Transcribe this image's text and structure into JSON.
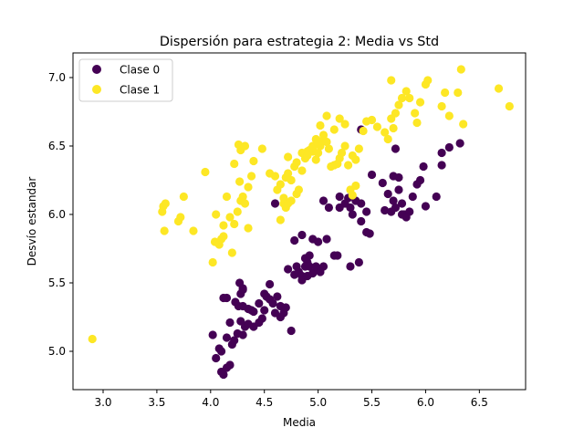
{
  "chart_data": {
    "type": "scatter",
    "title": "Dispersión para estrategia 2: Media vs Std",
    "xlabel": "Media",
    "ylabel": "Desvío estandar",
    "xlim": [
      2.72,
      6.93
    ],
    "ylim": [
      4.72,
      7.18
    ],
    "xticks": [
      3.0,
      3.5,
      4.0,
      4.5,
      5.0,
      5.5,
      6.0,
      6.5
    ],
    "yticks": [
      5.0,
      5.5,
      6.0,
      6.5,
      7.0
    ],
    "xtick_labels": [
      "3.0",
      "3.5",
      "4.0",
      "4.5",
      "5.0",
      "5.5",
      "6.0",
      "6.5"
    ],
    "ytick_labels": [
      "5.0",
      "5.5",
      "6.0",
      "6.5",
      "7.0"
    ],
    "grid": false,
    "legend_position": "top-left",
    "series": [
      {
        "name": "Clase 0",
        "color": "#440154",
        "points": [
          [
            4.1,
            4.85
          ],
          [
            4.12,
            4.83
          ],
          [
            4.15,
            4.88
          ],
          [
            4.18,
            4.9
          ],
          [
            4.05,
            4.95
          ],
          [
            4.08,
            5.02
          ],
          [
            4.02,
            5.12
          ],
          [
            4.1,
            5.0
          ],
          [
            4.15,
            5.1
          ],
          [
            4.2,
            5.05
          ],
          [
            4.22,
            5.08
          ],
          [
            4.25,
            5.13
          ],
          [
            4.18,
            5.21
          ],
          [
            4.28,
            5.22
          ],
          [
            4.3,
            5.12
          ],
          [
            4.32,
            5.18
          ],
          [
            4.35,
            5.2
          ],
          [
            4.4,
            5.18
          ],
          [
            4.45,
            5.21
          ],
          [
            4.48,
            5.24
          ],
          [
            4.5,
            5.3
          ],
          [
            4.4,
            5.29
          ],
          [
            4.35,
            5.31
          ],
          [
            4.3,
            5.33
          ],
          [
            4.26,
            5.33
          ],
          [
            4.23,
            5.36
          ],
          [
            4.15,
            5.39
          ],
          [
            4.12,
            5.39
          ],
          [
            4.28,
            5.42
          ],
          [
            4.3,
            5.45
          ],
          [
            4.27,
            5.5
          ],
          [
            4.3,
            5.46
          ],
          [
            4.38,
            5.3
          ],
          [
            4.45,
            5.35
          ],
          [
            4.5,
            5.42
          ],
          [
            4.52,
            5.4
          ],
          [
            4.55,
            5.38
          ],
          [
            4.58,
            5.35
          ],
          [
            4.62,
            5.4
          ],
          [
            4.55,
            5.49
          ],
          [
            4.65,
            5.33
          ],
          [
            4.68,
            5.28
          ],
          [
            4.65,
            5.25
          ],
          [
            4.6,
            5.28
          ],
          [
            4.7,
            5.32
          ],
          [
            4.75,
            5.15
          ],
          [
            4.72,
            5.6
          ],
          [
            4.78,
            5.56
          ],
          [
            4.82,
            5.58
          ],
          [
            4.85,
            5.55
          ],
          [
            4.88,
            5.62
          ],
          [
            4.9,
            5.65
          ],
          [
            4.92,
            5.62
          ],
          [
            4.8,
            5.62
          ],
          [
            4.85,
            5.52
          ],
          [
            4.9,
            5.55
          ],
          [
            4.95,
            5.57
          ],
          [
            5.0,
            5.6
          ],
          [
            5.05,
            5.62
          ],
          [
            4.88,
            5.68
          ],
          [
            4.92,
            5.7
          ],
          [
            4.98,
            5.62
          ],
          [
            5.02,
            5.58
          ],
          [
            4.78,
            5.81
          ],
          [
            4.85,
            5.85
          ],
          [
            4.95,
            5.82
          ],
          [
            5.0,
            5.8
          ],
          [
            5.08,
            5.82
          ],
          [
            5.15,
            5.7
          ],
          [
            5.18,
            5.7
          ],
          [
            5.3,
            5.62
          ],
          [
            5.38,
            5.65
          ],
          [
            5.45,
            5.87
          ],
          [
            5.48,
            5.86
          ],
          [
            5.4,
            5.95
          ],
          [
            5.32,
            6.0
          ],
          [
            5.3,
            6.05
          ],
          [
            5.25,
            6.08
          ],
          [
            5.2,
            6.05
          ],
          [
            5.28,
            6.12
          ],
          [
            5.35,
            6.1
          ],
          [
            5.4,
            6.08
          ],
          [
            5.05,
            6.1
          ],
          [
            5.1,
            6.05
          ],
          [
            5.2,
            6.13
          ],
          [
            5.45,
            6.02
          ],
          [
            5.5,
            6.29
          ],
          [
            5.6,
            6.23
          ],
          [
            5.65,
            6.15
          ],
          [
            5.7,
            6.1
          ],
          [
            5.75,
            6.18
          ],
          [
            5.62,
            6.03
          ],
          [
            5.68,
            6.02
          ],
          [
            5.72,
            6.05
          ],
          [
            5.78,
            6.08
          ],
          [
            5.8,
            6.0
          ],
          [
            5.85,
            6.02
          ],
          [
            5.88,
            6.13
          ],
          [
            5.92,
            6.22
          ],
          [
            5.95,
            6.25
          ],
          [
            6.0,
            6.06
          ],
          [
            5.75,
            6.27
          ],
          [
            5.7,
            6.28
          ],
          [
            5.98,
            6.35
          ],
          [
            5.78,
            6.0
          ],
          [
            5.82,
            5.98
          ],
          [
            6.1,
            6.13
          ],
          [
            6.15,
            6.36
          ],
          [
            6.15,
            6.45
          ],
          [
            6.22,
            6.49
          ],
          [
            6.32,
            6.52
          ],
          [
            5.72,
            6.48
          ],
          [
            5.4,
            6.62
          ],
          [
            4.6,
            6.08
          ]
        ]
      },
      {
        "name": "Clase 1",
        "color": "#fde725",
        "points": [
          [
            2.9,
            5.09
          ],
          [
            3.55,
            6.02
          ],
          [
            3.56,
            6.06
          ],
          [
            3.58,
            6.08
          ],
          [
            3.57,
            5.88
          ],
          [
            3.7,
            5.95
          ],
          [
            3.72,
            5.98
          ],
          [
            3.75,
            6.13
          ],
          [
            3.84,
            5.88
          ],
          [
            3.95,
            6.31
          ],
          [
            4.02,
            5.65
          ],
          [
            4.04,
            5.8
          ],
          [
            4.05,
            6.0
          ],
          [
            4.08,
            5.78
          ],
          [
            4.1,
            5.82
          ],
          [
            4.12,
            5.92
          ],
          [
            4.15,
            6.13
          ],
          [
            4.12,
            5.84
          ],
          [
            4.18,
            5.98
          ],
          [
            4.2,
            5.72
          ],
          [
            4.22,
            5.93
          ],
          [
            4.25,
            6.02
          ],
          [
            4.28,
            6.1
          ],
          [
            4.3,
            6.13
          ],
          [
            4.32,
            6.08
          ],
          [
            4.35,
            5.9
          ],
          [
            4.38,
            6.28
          ],
          [
            4.27,
            6.24
          ],
          [
            4.26,
            6.51
          ],
          [
            4.28,
            6.47
          ],
          [
            4.22,
            6.37
          ],
          [
            4.32,
            6.5
          ],
          [
            4.35,
            6.2
          ],
          [
            4.4,
            6.39
          ],
          [
            4.48,
            6.48
          ],
          [
            4.55,
            6.3
          ],
          [
            4.6,
            6.28
          ],
          [
            4.62,
            6.18
          ],
          [
            4.65,
            6.22
          ],
          [
            4.7,
            6.27
          ],
          [
            4.72,
            6.3
          ],
          [
            4.78,
            6.35
          ],
          [
            4.8,
            6.38
          ],
          [
            4.72,
            6.42
          ],
          [
            4.75,
            6.25
          ],
          [
            4.8,
            6.15
          ],
          [
            4.68,
            6.08
          ],
          [
            4.75,
            6.1
          ],
          [
            4.82,
            6.18
          ],
          [
            4.85,
            6.32
          ],
          [
            4.88,
            6.41
          ],
          [
            4.9,
            6.46
          ],
          [
            4.92,
            6.47
          ],
          [
            4.95,
            6.5
          ],
          [
            4.98,
            6.4
          ],
          [
            5.0,
            6.45
          ],
          [
            5.02,
            6.5
          ],
          [
            5.05,
            6.55
          ],
          [
            5.08,
            6.53
          ],
          [
            5.1,
            6.48
          ],
          [
            5.12,
            6.35
          ],
          [
            5.15,
            6.36
          ],
          [
            5.18,
            6.37
          ],
          [
            5.2,
            6.41
          ],
          [
            5.22,
            6.45
          ],
          [
            5.25,
            6.5
          ],
          [
            5.28,
            6.36
          ],
          [
            5.32,
            6.43
          ],
          [
            5.35,
            6.4
          ],
          [
            5.38,
            6.48
          ],
          [
            5.42,
            6.61
          ],
          [
            5.45,
            6.68
          ],
          [
            5.5,
            6.69
          ],
          [
            5.25,
            6.66
          ],
          [
            5.2,
            6.7
          ],
          [
            5.15,
            6.62
          ],
          [
            5.02,
            6.65
          ],
          [
            5.05,
            6.58
          ],
          [
            5.08,
            6.72
          ],
          [
            4.98,
            6.55
          ],
          [
            4.95,
            6.46
          ],
          [
            5.3,
            6.18
          ],
          [
            5.35,
            6.21
          ],
          [
            5.32,
            6.14
          ],
          [
            4.65,
            5.96
          ],
          [
            4.7,
            6.05
          ],
          [
            4.72,
            6.08
          ],
          [
            4.68,
            6.12
          ],
          [
            5.62,
            6.6
          ],
          [
            5.68,
            6.7
          ],
          [
            5.72,
            6.74
          ],
          [
            5.75,
            6.8
          ],
          [
            5.78,
            6.85
          ],
          [
            5.7,
            6.63
          ],
          [
            5.65,
            6.55
          ],
          [
            5.82,
            6.9
          ],
          [
            5.9,
            6.74
          ],
          [
            5.92,
            6.67
          ],
          [
            5.95,
            6.82
          ],
          [
            6.0,
            6.95
          ],
          [
            6.02,
            6.98
          ],
          [
            6.15,
            6.79
          ],
          [
            6.18,
            6.89
          ],
          [
            6.22,
            6.72
          ],
          [
            6.3,
            6.89
          ],
          [
            6.33,
            7.06
          ],
          [
            6.35,
            6.66
          ],
          [
            5.68,
            6.98
          ],
          [
            6.68,
            6.92
          ],
          [
            6.78,
            6.79
          ],
          [
            5.85,
            6.85
          ],
          [
            5.55,
            6.64
          ],
          [
            4.95,
            6.49
          ],
          [
            5.0,
            6.52
          ],
          [
            4.85,
            6.45
          ],
          [
            4.9,
            6.43
          ]
        ]
      }
    ]
  }
}
